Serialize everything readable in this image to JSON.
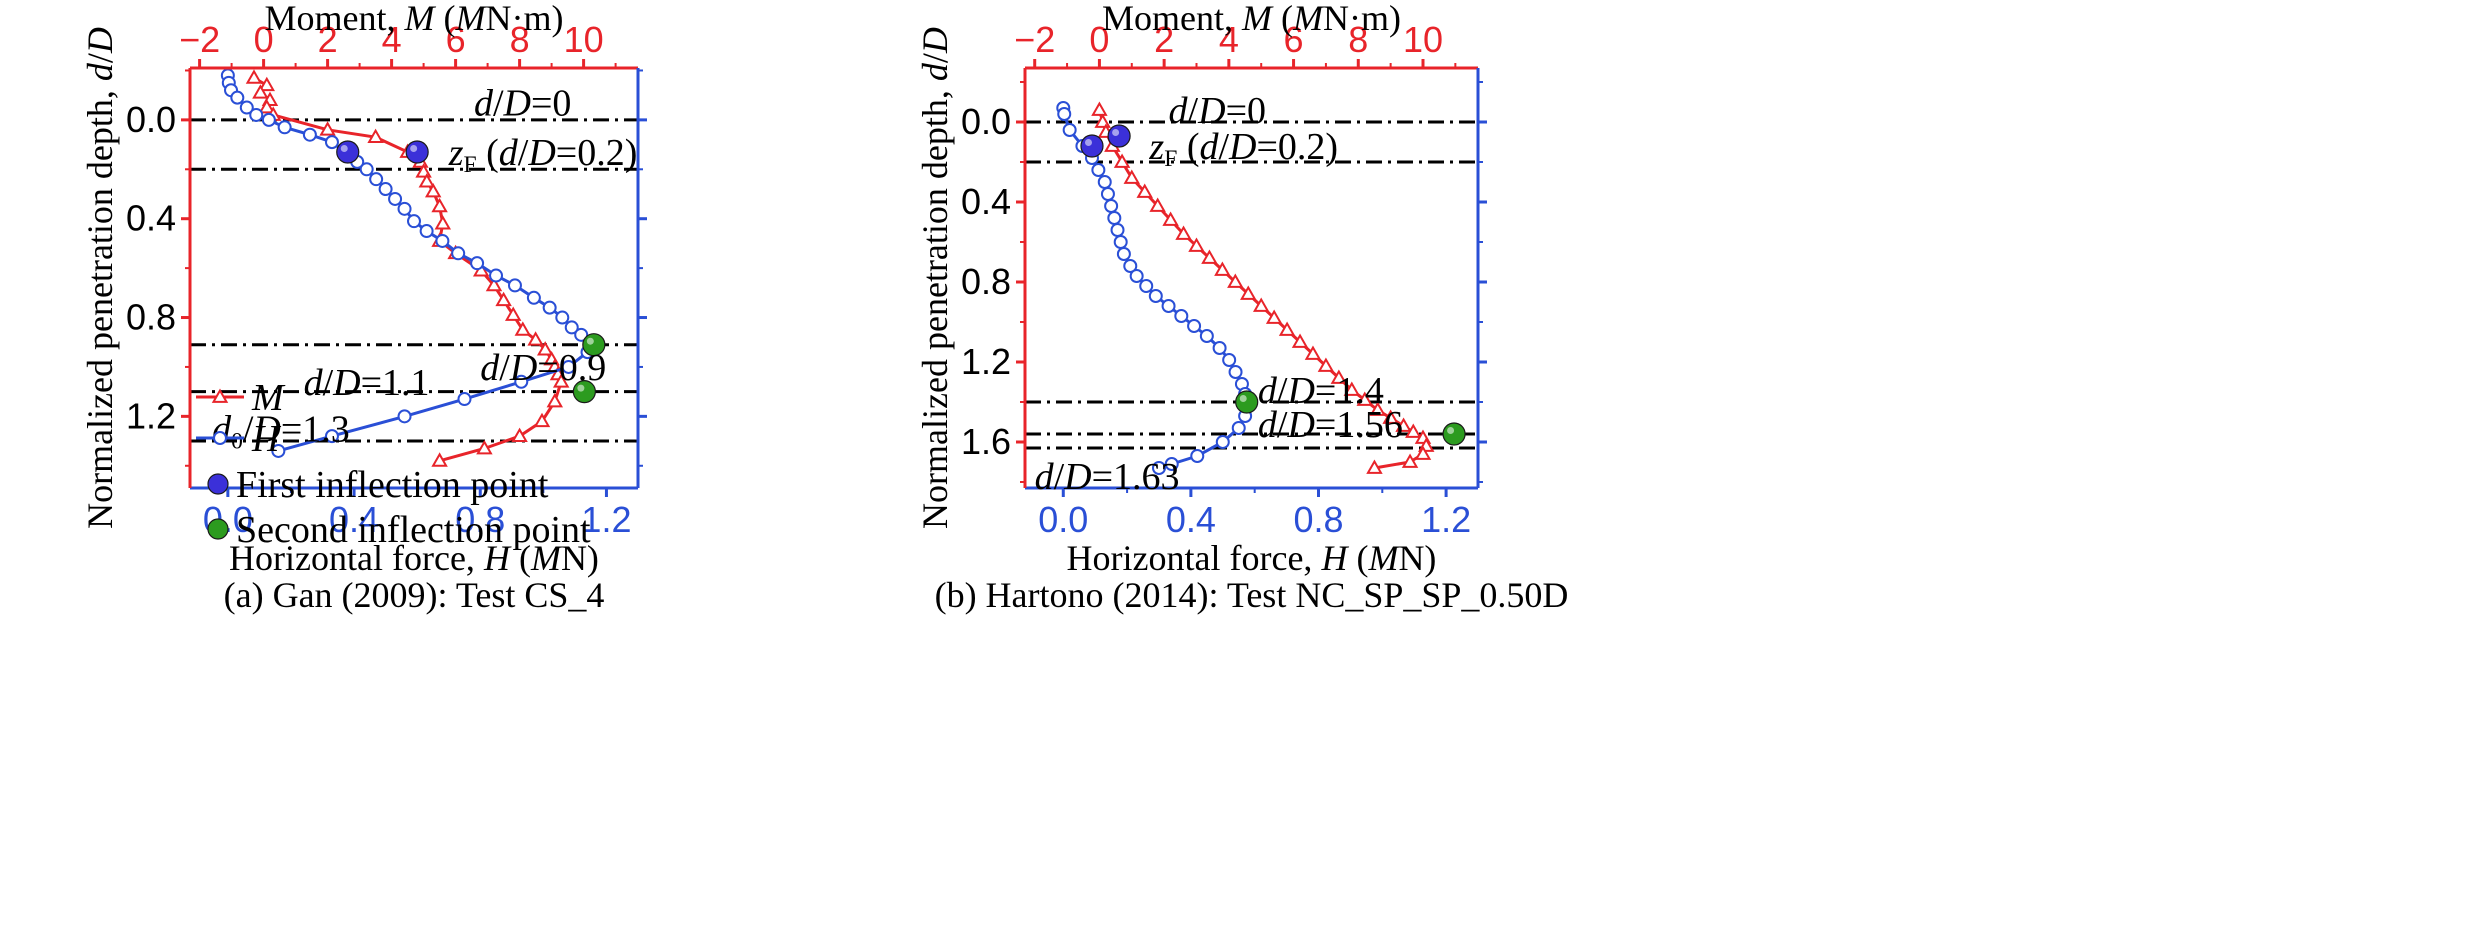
{
  "colors": {
    "moment": "#e8242a",
    "force": "#2a4fd6",
    "first_point": "#3b30d9",
    "second_point": "#2c9b1f",
    "refline": "#000000"
  },
  "chart_data": [
    {
      "type": "line",
      "caption": "(a) Gan (2009): Test CS_4",
      "ylabel": "Normalized penetration depth, d/D",
      "ylim": [
        1.49,
        -0.21
      ],
      "yticks": [
        0.0,
        0.4,
        0.8,
        1.2
      ],
      "ytick_labels": [
        "0.0",
        "0.4",
        "0.8",
        "1.2"
      ],
      "x_bottom": {
        "label": "Horizontal force, H (MN)",
        "lim": [
          -0.12,
          1.3
        ],
        "ticks": [
          0.0,
          0.4,
          0.8,
          1.2
        ],
        "tick_labels": [
          "0.0",
          "0.4",
          "0.8",
          "1.2"
        ]
      },
      "x_top": {
        "label": "Moment, M (MN·m)",
        "lim": [
          -2.3,
          11.7
        ],
        "ticks": [
          -2,
          0,
          2,
          4,
          6,
          8,
          10
        ],
        "tick_labels": [
          "−2",
          "0",
          "2",
          "4",
          "6",
          "8",
          "10"
        ]
      },
      "legend": {
        "placement": "left",
        "entries": [
          "M",
          "H",
          "First inflection point",
          "Second inflection point"
        ]
      },
      "series": [
        {
          "name": "M",
          "axis": "top",
          "x": [
            -0.3,
            0.1,
            -0.1,
            0.2,
            0.1,
            0.3,
            2.0,
            3.5,
            4.5,
            4.9,
            5.0,
            5.1,
            5.3,
            5.5,
            5.6,
            5.5,
            6.0,
            6.8,
            7.2,
            7.5,
            7.8,
            8.1,
            8.5,
            8.8,
            9.0,
            9.1,
            9.2,
            9.3,
            9.1,
            8.7,
            8.0,
            6.9,
            5.5
          ],
          "y": [
            -0.17,
            -0.14,
            -0.11,
            -0.08,
            -0.05,
            -0.02,
            0.04,
            0.07,
            0.13,
            0.17,
            0.21,
            0.25,
            0.29,
            0.35,
            0.42,
            0.49,
            0.54,
            0.61,
            0.67,
            0.73,
            0.79,
            0.85,
            0.89,
            0.93,
            0.97,
            1.0,
            1.03,
            1.06,
            1.14,
            1.22,
            1.28,
            1.33,
            1.38
          ]
        },
        {
          "name": "H",
          "axis": "bottom",
          "x": [
            0.0,
            0.003,
            0.01,
            0.03,
            0.06,
            0.09,
            0.13,
            0.18,
            0.26,
            0.33,
            0.38,
            0.41,
            0.44,
            0.47,
            0.5,
            0.53,
            0.56,
            0.59,
            0.63,
            0.68,
            0.73,
            0.79,
            0.85,
            0.91,
            0.97,
            1.02,
            1.06,
            1.09,
            1.12,
            1.15,
            1.14,
            1.08,
            0.93,
            0.75,
            0.56,
            0.33,
            0.16
          ],
          "y": [
            -0.18,
            -0.15,
            -0.12,
            -0.09,
            -0.05,
            -0.02,
            0.0,
            0.03,
            0.06,
            0.09,
            0.14,
            0.17,
            0.2,
            0.24,
            0.28,
            0.32,
            0.36,
            0.41,
            0.45,
            0.49,
            0.54,
            0.58,
            0.63,
            0.67,
            0.72,
            0.76,
            0.8,
            0.84,
            0.87,
            0.9,
            0.94,
            1.0,
            1.06,
            1.13,
            1.2,
            1.28,
            1.34
          ]
        },
        {
          "name": "First inflection point",
          "axis": "bottom",
          "x": [
            0.38,
            0.6
          ],
          "y": [
            0.13,
            0.13
          ]
        },
        {
          "name": "Second inflection point",
          "axis": "bottom",
          "x": [
            1.16,
            1.13
          ],
          "y": [
            0.91,
            1.1
          ]
        }
      ],
      "reference_lines": [
        {
          "y": 0.0,
          "label": "d/D=0",
          "label_x": 0.78,
          "label_y": -0.07
        },
        {
          "y": 0.2,
          "label": "zF (d/D=0.2)",
          "label_x": 0.7,
          "label_y": 0.13
        },
        {
          "y": 0.91,
          "label": "d/D=0.9",
          "label_x": 0.8,
          "label_y": 1.0
        },
        {
          "y": 1.1,
          "label": "d/D=1.1",
          "label_x": 0.24,
          "label_y": 1.06
        },
        {
          "y": 1.3,
          "label": "d0/D=1.3",
          "label_x": -0.05,
          "label_y": 1.25
        }
      ]
    },
    {
      "type": "line",
      "caption": "(b) Hartono (2014): Test NC_SP_SP_0.50D",
      "ylabel": "Normalized penetration depth, d/D",
      "ylim": [
        1.83,
        -0.27
      ],
      "yticks": [
        0.0,
        0.4,
        0.8,
        1.2,
        1.6
      ],
      "ytick_labels": [
        "0.0",
        "0.4",
        "0.8",
        "1.2",
        "1.6"
      ],
      "x_bottom": {
        "label": "Horizontal force, H (MN)",
        "lim": [
          -0.12,
          1.3
        ],
        "ticks": [
          0.0,
          0.4,
          0.8,
          1.2
        ],
        "tick_labels": [
          "0.0",
          "0.4",
          "0.8",
          "1.2"
        ]
      },
      "x_top": {
        "label": "Moment, M (MN·m)",
        "lim": [
          -2.3,
          11.7
        ],
        "ticks": [
          -2,
          0,
          2,
          4,
          6,
          8,
          10
        ],
        "tick_labels": [
          "−2",
          "0",
          "2",
          "4",
          "6",
          "8",
          "10"
        ]
      },
      "series": [
        {
          "name": "M",
          "axis": "top",
          "x": [
            0.0,
            0.1,
            0.2,
            0.4,
            0.7,
            1.0,
            1.4,
            1.8,
            2.2,
            2.6,
            3.0,
            3.4,
            3.8,
            4.2,
            4.6,
            5.0,
            5.4,
            5.8,
            6.2,
            6.6,
            7.0,
            7.4,
            7.8,
            8.2,
            8.6,
            9.0,
            9.4,
            9.7,
            10.0,
            10.1,
            10.0,
            9.6,
            8.5
          ],
          "y": [
            -0.06,
            0.0,
            0.05,
            0.12,
            0.2,
            0.28,
            0.35,
            0.42,
            0.49,
            0.56,
            0.62,
            0.68,
            0.74,
            0.8,
            0.86,
            0.92,
            0.98,
            1.04,
            1.1,
            1.16,
            1.22,
            1.28,
            1.34,
            1.39,
            1.44,
            1.48,
            1.52,
            1.55,
            1.58,
            1.62,
            1.66,
            1.7,
            1.73
          ]
        },
        {
          "name": "H",
          "axis": "bottom",
          "x": [
            0.0,
            0.003,
            0.02,
            0.06,
            0.09,
            0.11,
            0.13,
            0.14,
            0.15,
            0.16,
            0.17,
            0.18,
            0.19,
            0.21,
            0.23,
            0.26,
            0.29,
            0.33,
            0.37,
            0.41,
            0.45,
            0.49,
            0.52,
            0.54,
            0.56,
            0.57,
            0.575,
            0.57,
            0.55,
            0.5,
            0.42,
            0.34,
            0.3
          ],
          "y": [
            -0.07,
            -0.04,
            0.04,
            0.12,
            0.18,
            0.24,
            0.3,
            0.36,
            0.42,
            0.48,
            0.54,
            0.6,
            0.66,
            0.72,
            0.77,
            0.82,
            0.87,
            0.92,
            0.97,
            1.02,
            1.07,
            1.13,
            1.19,
            1.25,
            1.31,
            1.36,
            1.41,
            1.47,
            1.53,
            1.6,
            1.67,
            1.71,
            1.73
          ]
        },
        {
          "name": "First inflection point",
          "axis": "bottom",
          "x": [
            0.09,
            0.175
          ],
          "y": [
            0.12,
            0.07
          ]
        },
        {
          "name": "Second inflection point",
          "axis": "bottom",
          "x": [
            0.575,
            1.225
          ],
          "y": [
            1.4,
            1.56
          ]
        }
      ],
      "reference_lines": [
        {
          "y": 0.0,
          "label": "d/D=0",
          "label_x": 0.33,
          "label_y": -0.06
        },
        {
          "y": 0.2,
          "label": "zF (d/D=0.2)",
          "label_x": 0.27,
          "label_y": 0.12
        },
        {
          "y": 1.4,
          "label": "d/D=1.4",
          "label_x": 0.61,
          "label_y": 1.34
        },
        {
          "y": 1.56,
          "label": "d/D=1.56",
          "label_x": 0.61,
          "label_y": 1.51
        },
        {
          "y": 1.63,
          "label": "d/D=1.63",
          "label_x": -0.09,
          "label_y": 1.77
        }
      ]
    }
  ]
}
